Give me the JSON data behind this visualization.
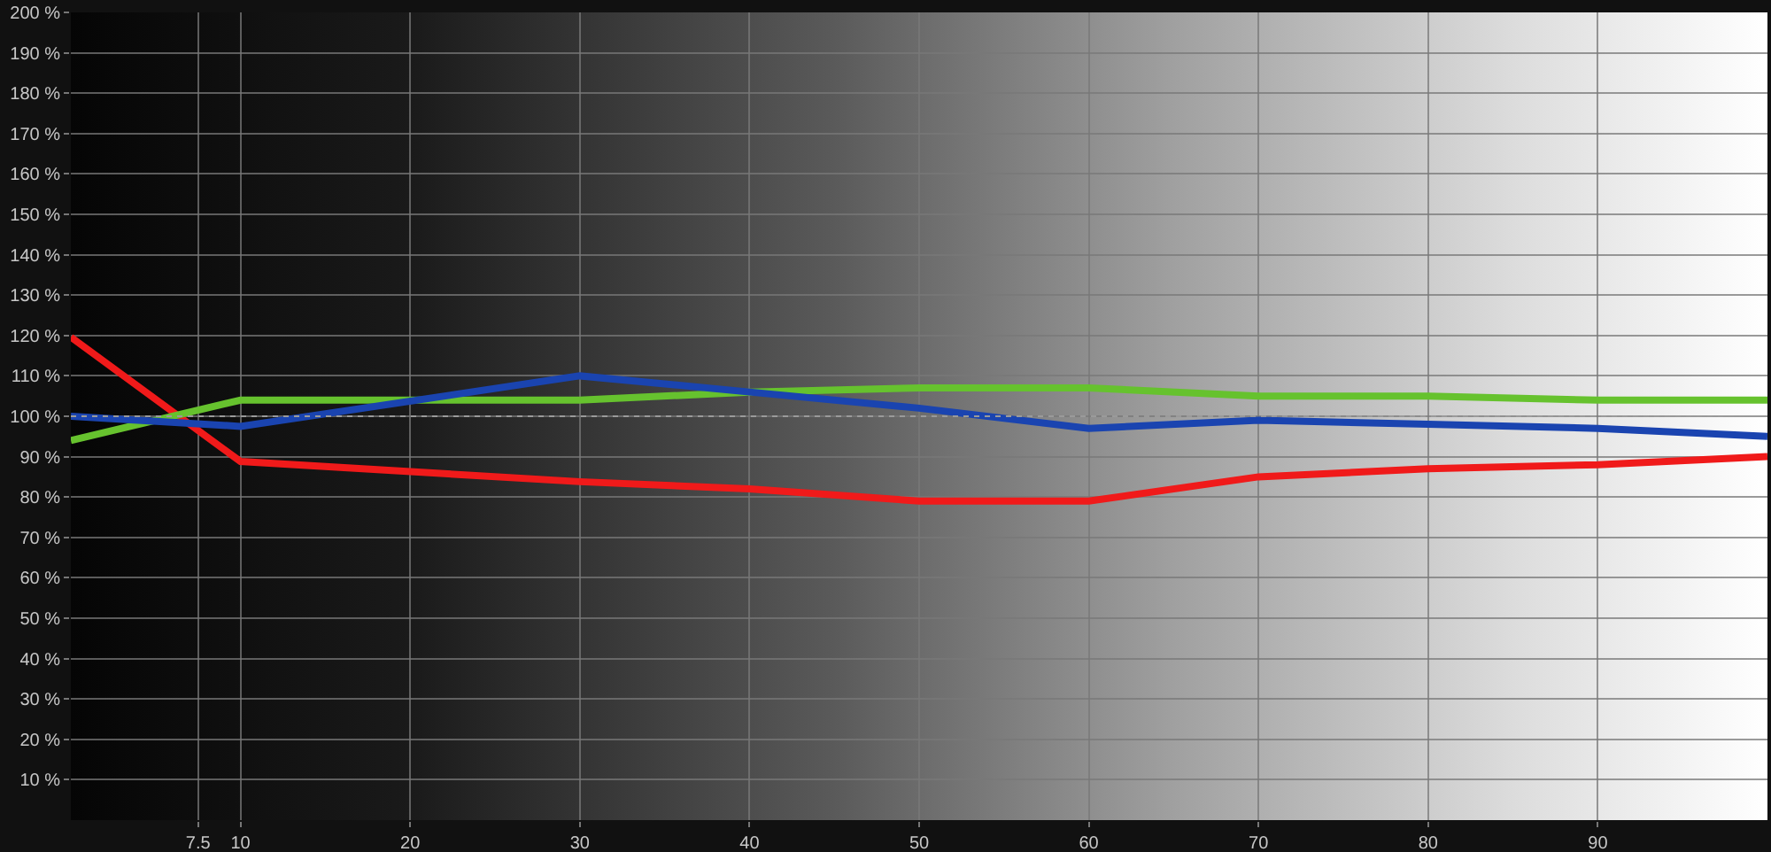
{
  "chart_data": {
    "type": "line",
    "x": [
      0,
      10,
      30,
      40,
      50,
      60,
      70,
      80,
      90,
      100
    ],
    "series": [
      {
        "color": "#f01a1a",
        "values": [
          119.6,
          88.8,
          83.8,
          82,
          79,
          79,
          85,
          87,
          88,
          90
        ]
      },
      {
        "color": "#66c22e",
        "values": [
          94,
          104,
          104,
          106,
          107,
          107,
          105,
          105,
          104,
          104
        ]
      },
      {
        "color": "#1a44b0",
        "values": [
          100,
          97.5,
          110,
          106,
          102,
          97,
          99,
          98,
          97,
          95
        ]
      }
    ],
    "xlim": [
      0,
      100
    ],
    "xticks": [
      7.5,
      10,
      20,
      30,
      40,
      50,
      60,
      70,
      80,
      90
    ],
    "ylim": [
      0,
      200
    ],
    "yticks": [
      {
        "value": 10,
        "label": "10 %"
      },
      {
        "value": 20,
        "label": "20 %"
      },
      {
        "value": 30,
        "label": "30 %"
      },
      {
        "value": 40,
        "label": "40 %"
      },
      {
        "value": 50,
        "label": "50 %"
      },
      {
        "value": 60,
        "label": "60 %"
      },
      {
        "value": 70,
        "label": "70 %"
      },
      {
        "value": 80,
        "label": "80 %"
      },
      {
        "value": 90,
        "label": "90 %"
      },
      {
        "value": 100,
        "label": "100 %"
      },
      {
        "value": 110,
        "label": "110 %"
      },
      {
        "value": 120,
        "label": "120 %"
      },
      {
        "value": 130,
        "label": "130 %"
      },
      {
        "value": 140,
        "label": "140 %"
      },
      {
        "value": 150,
        "label": "150 %"
      },
      {
        "value": 160,
        "label": "160 %"
      },
      {
        "value": 170,
        "label": "170 %"
      },
      {
        "value": 180,
        "label": "180 %"
      },
      {
        "value": 190,
        "label": "190 %"
      },
      {
        "value": 200,
        "label": "200 %"
      }
    ],
    "ref_lines": [
      {
        "axis": "y",
        "value": 100,
        "color": "#9a9a9a",
        "line_style": "dotted"
      }
    ],
    "grid": true,
    "legend": false,
    "marker": "none",
    "line_style": "solid"
  }
}
